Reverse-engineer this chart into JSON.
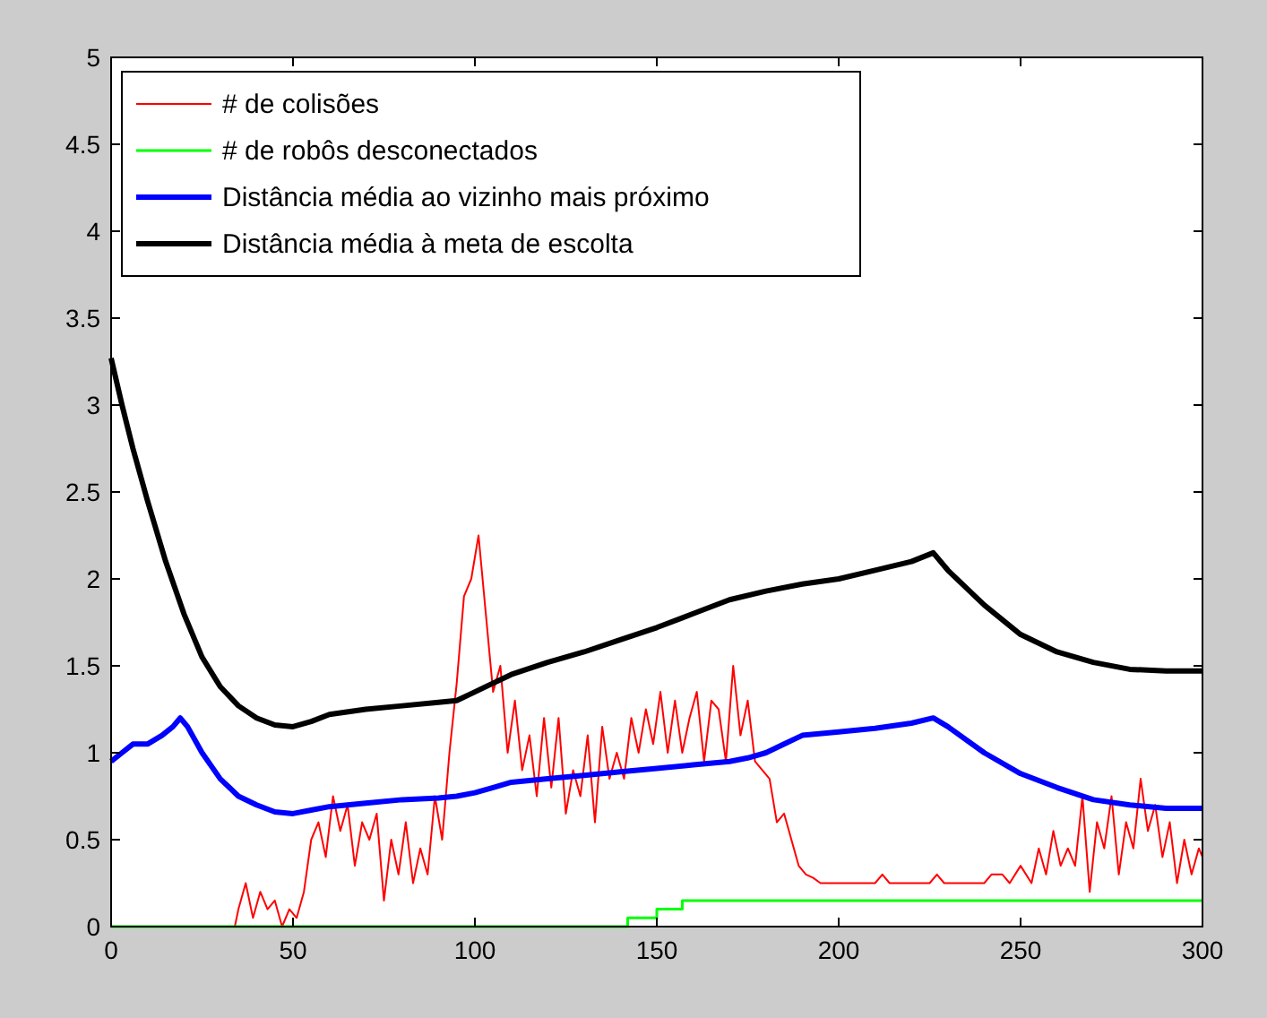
{
  "chart_data": {
    "type": "line",
    "xlim": [
      0,
      300
    ],
    "ylim": [
      0,
      5
    ],
    "xticks": [
      0,
      50,
      100,
      150,
      200,
      250,
      300
    ],
    "yticks": [
      0,
      0.5,
      1,
      1.5,
      2,
      2.5,
      3,
      3.5,
      4,
      4.5,
      5
    ],
    "grid": false,
    "legend": "top left",
    "series": [
      {
        "name": "# de colisões",
        "color": "#ff0000",
        "x": [
          0,
          34,
          35,
          37,
          39,
          41,
          43,
          45,
          47,
          49,
          51,
          53,
          55,
          57,
          59,
          61,
          63,
          65,
          67,
          69,
          71,
          73,
          75,
          77,
          79,
          81,
          83,
          85,
          87,
          89,
          91,
          93,
          95,
          97,
          99,
          101,
          103,
          105,
          107,
          109,
          111,
          113,
          115,
          117,
          119,
          121,
          123,
          125,
          127,
          129,
          131,
          133,
          135,
          137,
          139,
          141,
          143,
          145,
          147,
          149,
          151,
          153,
          155,
          157,
          159,
          161,
          163,
          165,
          167,
          169,
          171,
          173,
          175,
          177,
          179,
          181,
          183,
          185,
          187,
          189,
          191,
          193,
          195,
          210,
          212,
          214,
          225,
          227,
          229,
          240,
          242,
          245,
          247,
          250,
          253,
          255,
          257,
          259,
          261,
          263,
          265,
          267,
          269,
          271,
          273,
          275,
          277,
          279,
          281,
          283,
          285,
          287,
          289,
          291,
          293,
          295,
          297,
          299,
          300
        ],
        "values": [
          0,
          0,
          0.1,
          0.25,
          0.05,
          0.2,
          0.1,
          0.15,
          0,
          0.1,
          0.05,
          0.2,
          0.5,
          0.6,
          0.4,
          0.75,
          0.55,
          0.7,
          0.35,
          0.6,
          0.5,
          0.65,
          0.15,
          0.5,
          0.3,
          0.6,
          0.25,
          0.45,
          0.3,
          0.75,
          0.5,
          1.0,
          1.4,
          1.9,
          2.0,
          2.25,
          1.8,
          1.35,
          1.5,
          1.0,
          1.3,
          0.9,
          1.1,
          0.75,
          1.2,
          0.8,
          1.2,
          0.65,
          0.9,
          0.75,
          1.1,
          0.6,
          1.15,
          0.85,
          1.0,
          0.85,
          1.2,
          1.0,
          1.25,
          1.05,
          1.35,
          1.0,
          1.3,
          1.0,
          1.2,
          1.35,
          0.95,
          1.3,
          1.25,
          0.95,
          1.5,
          1.1,
          1.3,
          0.95,
          0.9,
          0.85,
          0.6,
          0.65,
          0.5,
          0.35,
          0.3,
          0.28,
          0.25,
          0.25,
          0.3,
          0.25,
          0.25,
          0.3,
          0.25,
          0.25,
          0.3,
          0.3,
          0.25,
          0.35,
          0.25,
          0.45,
          0.3,
          0.55,
          0.35,
          0.45,
          0.35,
          0.75,
          0.2,
          0.6,
          0.45,
          0.75,
          0.3,
          0.6,
          0.45,
          0.85,
          0.55,
          0.7,
          0.4,
          0.6,
          0.25,
          0.5,
          0.3,
          0.45,
          0.4
        ]
      },
      {
        "name": "# de robôs desconectados",
        "color": "#00ff00",
        "type": "step",
        "x": [
          0,
          142,
          150,
          157,
          300
        ],
        "values": [
          0,
          0.05,
          0.1,
          0.15,
          0.15
        ]
      },
      {
        "name": "Distância média ao vizinho mais próximo",
        "color": "#0000ff",
        "x": [
          0,
          3,
          6,
          10,
          14,
          17,
          19,
          21,
          25,
          30,
          35,
          40,
          45,
          50,
          55,
          60,
          70,
          80,
          90,
          95,
          100,
          105,
          110,
          120,
          130,
          140,
          150,
          160,
          170,
          175,
          180,
          185,
          190,
          200,
          210,
          220,
          226,
          230,
          240,
          250,
          260,
          270,
          280,
          290,
          300
        ],
        "values": [
          0.95,
          1.0,
          1.05,
          1.05,
          1.1,
          1.15,
          1.2,
          1.15,
          1.0,
          0.85,
          0.75,
          0.7,
          0.66,
          0.65,
          0.67,
          0.69,
          0.71,
          0.73,
          0.74,
          0.75,
          0.77,
          0.8,
          0.83,
          0.85,
          0.87,
          0.89,
          0.91,
          0.93,
          0.95,
          0.97,
          1.0,
          1.05,
          1.1,
          1.12,
          1.14,
          1.17,
          1.2,
          1.15,
          1.0,
          0.88,
          0.8,
          0.73,
          0.7,
          0.68,
          0.68
        ]
      },
      {
        "name": "Distância média à meta de escolta",
        "color": "#000000",
        "x": [
          0,
          3,
          6,
          10,
          15,
          20,
          25,
          30,
          35,
          40,
          45,
          50,
          55,
          60,
          70,
          80,
          90,
          95,
          100,
          105,
          110,
          120,
          130,
          140,
          150,
          160,
          170,
          180,
          190,
          200,
          210,
          220,
          226,
          230,
          240,
          250,
          260,
          270,
          280,
          290,
          300
        ],
        "values": [
          3.27,
          3.0,
          2.75,
          2.45,
          2.1,
          1.8,
          1.55,
          1.38,
          1.27,
          1.2,
          1.16,
          1.15,
          1.18,
          1.22,
          1.25,
          1.27,
          1.29,
          1.3,
          1.35,
          1.4,
          1.45,
          1.52,
          1.58,
          1.65,
          1.72,
          1.8,
          1.88,
          1.93,
          1.97,
          2.0,
          2.05,
          2.1,
          2.15,
          2.05,
          1.85,
          1.68,
          1.58,
          1.52,
          1.48,
          1.47,
          1.47
        ]
      }
    ]
  }
}
